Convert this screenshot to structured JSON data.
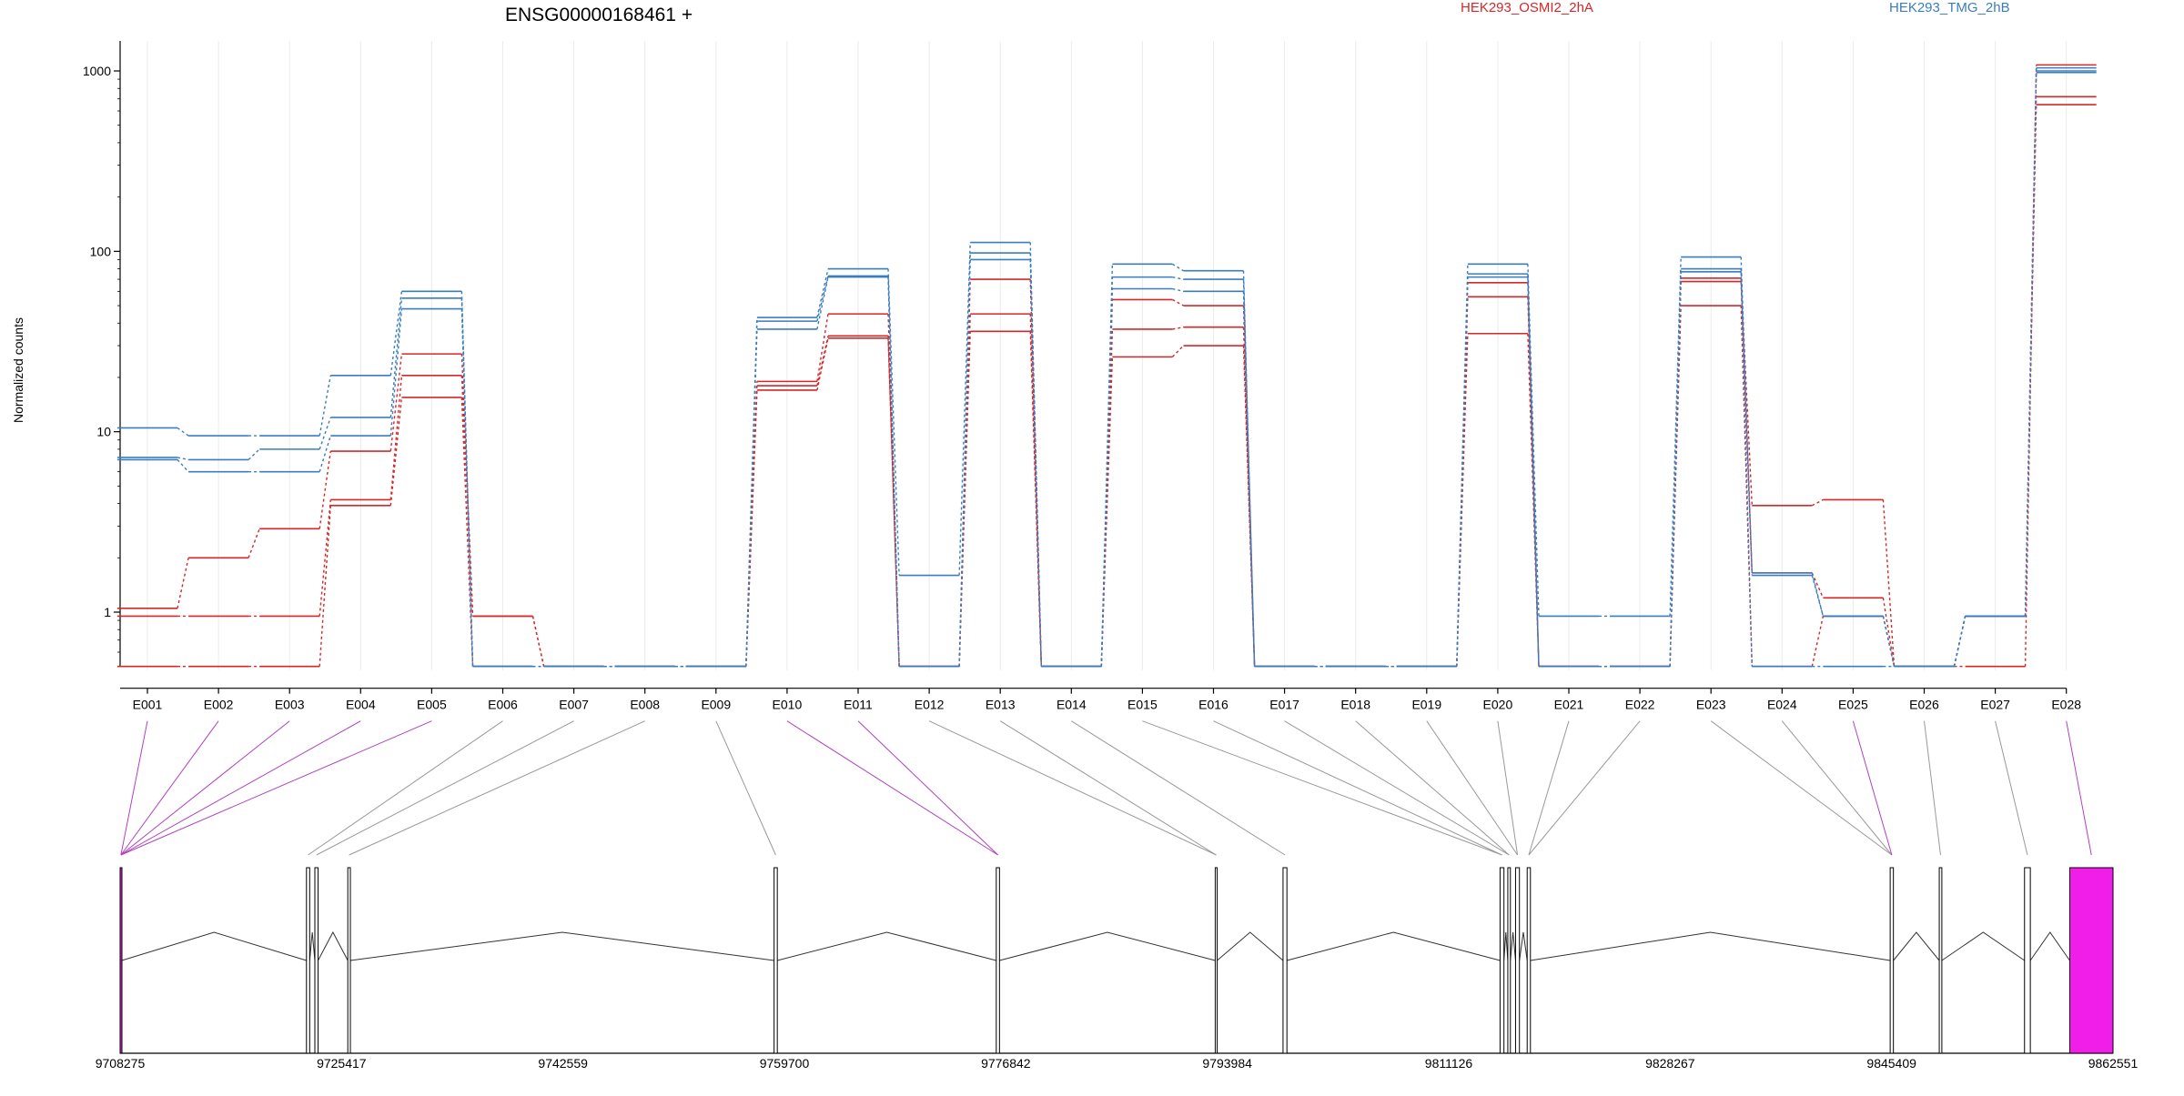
{
  "chart_data": {
    "type": "line",
    "title": "ENSG00000168461 +",
    "ylabel": "Normalized counts",
    "y_scale": "log",
    "ylim": [
      0.5,
      1100
    ],
    "y_ticks": [
      {
        "value": 1,
        "label": "1"
      },
      {
        "value": 10,
        "label": "10"
      },
      {
        "value": 100,
        "label": "100"
      },
      {
        "value": 1000,
        "label": "1000"
      }
    ],
    "exons": [
      "E001",
      "E002",
      "E003",
      "E004",
      "E005",
      "E006",
      "E007",
      "E008",
      "E009",
      "E010",
      "E011",
      "E012",
      "E013",
      "E014",
      "E015",
      "E016",
      "E017",
      "E018",
      "E019",
      "E020",
      "E021",
      "E022",
      "E023",
      "E024",
      "E025",
      "E026",
      "E027",
      "E028"
    ],
    "series": [
      {
        "name": "HEK293_OSMI2_2hA",
        "color": "#d62728",
        "values": [
          1.05,
          2.0,
          2.9,
          7.8,
          27,
          0.95,
          0.5,
          0.5,
          0.5,
          19,
          45,
          0.5,
          70,
          0.5,
          54,
          50,
          0.5,
          0.5,
          0.5,
          67,
          0.5,
          0.5,
          71,
          3.9,
          4.2,
          0.5,
          0.5,
          1080
        ]
      },
      {
        "name": "",
        "color": "#d62728",
        "values": [
          0.95,
          0.95,
          0.95,
          4.2,
          20.5,
          0.95,
          0.5,
          0.5,
          0.5,
          18,
          34,
          0.5,
          45,
          0.5,
          37,
          38,
          0.5,
          0.5,
          0.5,
          56,
          0.5,
          0.5,
          68,
          1.65,
          1.2,
          0.5,
          0.95,
          720
        ]
      },
      {
        "name": "",
        "color": "#d62728",
        "values": [
          0.5,
          0.5,
          0.5,
          3.9,
          15.5,
          0.5,
          0.5,
          0.5,
          0.5,
          17,
          33,
          0.5,
          36,
          0.5,
          26,
          30,
          0.5,
          0.5,
          0.5,
          35,
          0.5,
          0.5,
          50,
          0.5,
          0.95,
          0.5,
          0.95,
          650
        ]
      },
      {
        "name": "HEK293_TMG_2hB",
        "color": "#3a7dbf",
        "values": [
          10.5,
          9.5,
          9.5,
          20.5,
          60,
          0.5,
          0.5,
          0.5,
          0.5,
          43,
          80,
          1.6,
          112,
          0.5,
          85,
          78,
          0.5,
          0.5,
          0.5,
          85,
          0.95,
          0.95,
          93,
          1.65,
          0.95,
          0.5,
          0.95,
          1040
        ]
      },
      {
        "name": "",
        "color": "#3a7dbf",
        "values": [
          7.2,
          7.0,
          8.0,
          12,
          55,
          0.5,
          0.5,
          0.5,
          0.5,
          41,
          73,
          0.5,
          98,
          0.5,
          72,
          70,
          0.5,
          0.5,
          0.5,
          75,
          0.5,
          0.5,
          80,
          1.6,
          0.95,
          0.5,
          0.95,
          1000
        ]
      },
      {
        "name": "",
        "color": "#3a7dbf",
        "values": [
          7.0,
          6.0,
          6.0,
          9.5,
          48,
          0.5,
          0.5,
          0.5,
          0.5,
          37,
          72,
          0.5,
          90,
          0.5,
          62,
          60,
          0.5,
          0.5,
          0.5,
          72,
          0.5,
          0.5,
          77,
          0.5,
          0.5,
          0.5,
          0.95,
          980
        ]
      }
    ],
    "gene_model": {
      "genomic_ticks": [
        "9708275",
        "9725417",
        "9742559",
        "9759700",
        "9776842",
        "9793984",
        "9811126",
        "9828267",
        "9845409",
        "9862551"
      ],
      "exon_start": 9708275,
      "exon_end": 9862551,
      "exons": [
        {
          "start": 9708275,
          "end": 9708400,
          "highlight": true
        },
        {
          "start": 9722700,
          "end": 9722950,
          "highlight": false
        },
        {
          "start": 9723350,
          "end": 9723600,
          "highlight": false
        },
        {
          "start": 9725900,
          "end": 9726100,
          "highlight": false
        },
        {
          "start": 9758900,
          "end": 9759150,
          "highlight": false
        },
        {
          "start": 9776100,
          "end": 9776350,
          "highlight": false
        },
        {
          "start": 9793050,
          "end": 9793200,
          "highlight": false
        },
        {
          "start": 9798300,
          "end": 9798600,
          "highlight": false
        },
        {
          "start": 9815100,
          "end": 9815400,
          "highlight": false
        },
        {
          "start": 9815700,
          "end": 9815900,
          "highlight": false
        },
        {
          "start": 9816300,
          "end": 9816600,
          "highlight": false
        },
        {
          "start": 9817200,
          "end": 9817450,
          "highlight": false
        },
        {
          "start": 9845300,
          "end": 9845550,
          "highlight": false
        },
        {
          "start": 9849100,
          "end": 9849300,
          "highlight": false
        },
        {
          "start": 9855700,
          "end": 9856150,
          "highlight": false
        },
        {
          "start": 9859200,
          "end": 9862551,
          "highlight": true
        }
      ],
      "exon_links": [
        {
          "exon": 0,
          "model": 0,
          "highlight": true
        },
        {
          "exon": 1,
          "model": 0,
          "highlight": true
        },
        {
          "exon": 2,
          "model": 0,
          "highlight": true
        },
        {
          "exon": 3,
          "model": 0,
          "highlight": true
        },
        {
          "exon": 4,
          "model": 0,
          "highlight": true
        },
        {
          "exon": 5,
          "model": 1,
          "highlight": false
        },
        {
          "exon": 6,
          "model": 2,
          "highlight": false
        },
        {
          "exon": 7,
          "model": 3,
          "highlight": false
        },
        {
          "exon": 8,
          "model": 4,
          "highlight": false
        },
        {
          "exon": 9,
          "model": 5,
          "highlight": true
        },
        {
          "exon": 10,
          "model": 5,
          "highlight": true
        },
        {
          "exon": 11,
          "model": 6,
          "highlight": false
        },
        {
          "exon": 12,
          "model": 6,
          "highlight": false
        },
        {
          "exon": 13,
          "model": 7,
          "highlight": false
        },
        {
          "exon": 14,
          "model": 8,
          "highlight": false
        },
        {
          "exon": 15,
          "model": 8,
          "highlight": false
        },
        {
          "exon": 16,
          "model": 9,
          "highlight": false
        },
        {
          "exon": 17,
          "model": 9,
          "highlight": false
        },
        {
          "exon": 18,
          "model": 10,
          "highlight": false
        },
        {
          "exon": 19,
          "model": 10,
          "highlight": false
        },
        {
          "exon": 20,
          "model": 11,
          "highlight": false
        },
        {
          "exon": 21,
          "model": 11,
          "highlight": false
        },
        {
          "exon": 22,
          "model": 12,
          "highlight": false
        },
        {
          "exon": 23,
          "model": 12,
          "highlight": false
        },
        {
          "exon": 24,
          "model": 12,
          "highlight": true
        },
        {
          "exon": 25,
          "model": 13,
          "highlight": false
        },
        {
          "exon": 26,
          "model": 14,
          "highlight": false
        },
        {
          "exon": 27,
          "model": 15,
          "highlight": true
        }
      ]
    },
    "grid": true
  }
}
